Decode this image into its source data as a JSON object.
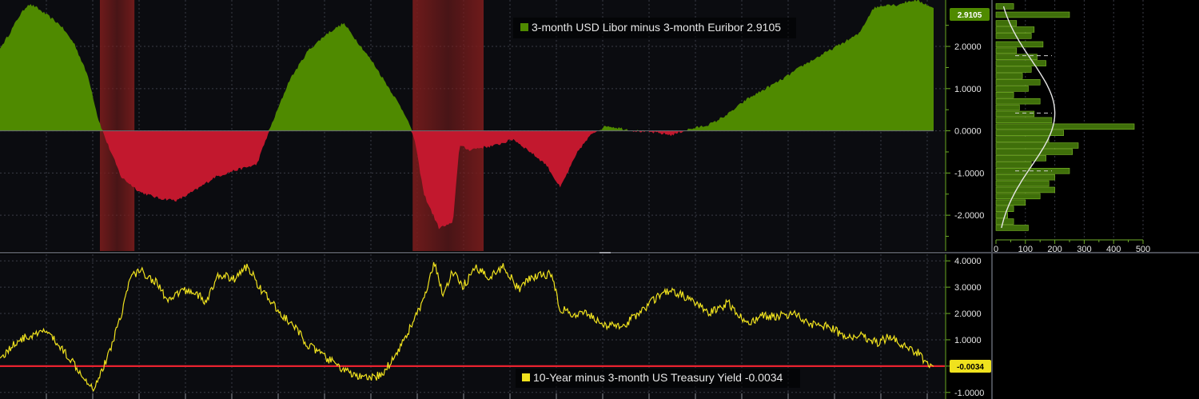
{
  "colors": {
    "background": "#000000",
    "panel": "#0b0c10",
    "grid": "#3a3d46",
    "positive_fill": "#4f8a00",
    "negative_fill": "#c2182e",
    "recession_band": "#7a1c1c",
    "yield_line": "#f0e21e",
    "zero_line": "#e8222e",
    "axis_text": "#e6e6e6",
    "axis_line": "#6fae2a"
  },
  "chart_data": [
    {
      "type": "area",
      "legend": "3-month USD Libor minus 3-month Euribor 2.9105",
      "legend_swatch_color": "#4f8a00",
      "last_value_label": "2.9105",
      "last_value": 2.9105,
      "ylim": [
        -2.85,
        3.1
      ],
      "y_ticks": [
        2.0,
        1.0,
        0.0,
        -1.0,
        -2.0
      ],
      "y_tick_labels": [
        "2.0000",
        "1.0000",
        "0.0000",
        "-1.0000",
        "-2.0000"
      ],
      "grid": true,
      "legend_placement": "top-center",
      "x_index_range": [
        0,
        100
      ],
      "shaded_periods": [
        {
          "start": 10.7,
          "end": 14.4
        },
        {
          "start": 44.2,
          "end": 51.8
        }
      ],
      "series": [
        {
          "values_x": [
            0,
            1,
            2,
            3,
            3.7,
            5,
            6.5,
            8,
            9.5,
            10.5,
            11.4,
            13,
            15,
            17,
            19,
            21,
            23,
            25,
            27.5,
            29,
            31,
            33,
            35,
            36.8,
            38,
            40,
            42,
            43.5,
            44.4,
            45.4,
            47,
            48.5,
            49.2,
            50.2,
            51.5,
            53,
            55,
            56.5,
            58.5,
            60,
            62,
            63.5,
            65,
            66.5,
            68,
            70,
            72,
            73.5,
            74.5,
            75.5,
            76.5,
            77.2,
            78,
            80,
            82,
            84,
            86,
            88,
            90,
            92,
            93.5,
            95,
            96,
            97,
            98,
            99,
            100
          ],
          "values": [
            1.95,
            2.3,
            2.7,
            3.0,
            2.95,
            2.75,
            2.5,
            2.05,
            1.25,
            0.3,
            -0.25,
            -1.1,
            -1.45,
            -1.6,
            -1.65,
            -1.4,
            -1.1,
            -0.95,
            -0.8,
            0.1,
            1.2,
            1.9,
            2.3,
            2.55,
            2.2,
            1.6,
            0.9,
            0.35,
            -0.2,
            -1.5,
            -2.3,
            -2.2,
            -0.35,
            -0.45,
            -0.4,
            -0.35,
            -0.2,
            -0.45,
            -0.8,
            -1.35,
            -0.45,
            -0.05,
            0.12,
            0.06,
            0.0,
            -0.04,
            -0.1,
            0.02,
            0.07,
            0.12,
            0.2,
            0.3,
            0.4,
            0.75,
            1.0,
            1.25,
            1.55,
            1.8,
            2.05,
            2.3,
            2.9,
            3.0,
            2.98,
            3.05,
            3.1,
            3.02,
            2.9105
          ]
        }
      ]
    },
    {
      "type": "line",
      "legend": "10-Year minus 3-month US Treasury Yield -0.0034",
      "legend_swatch_color": "#f0e21e",
      "last_value_label": "-0.0034",
      "last_value": -0.0034,
      "ylim": [
        -1.25,
        4.25
      ],
      "y_ticks": [
        4.0,
        3.0,
        2.0,
        1.0,
        0.0,
        -1.0
      ],
      "y_tick_labels": [
        "4.0000",
        "3.0000",
        "2.0000",
        "1.0000",
        "",
        "-1.0000"
      ],
      "reference_line": 0,
      "grid": true,
      "legend_placement": "bottom-center",
      "x_index_range": [
        0,
        100
      ],
      "series": [
        {
          "values_x": [
            0,
            2,
            4,
            5,
            6,
            7.5,
            9,
            10,
            11.5,
            13,
            14,
            15,
            17,
            18,
            19.5,
            21,
            22,
            23.5,
            25,
            26.5,
            28,
            30,
            31.5,
            33,
            35,
            37.5,
            39.5,
            41,
            42.5,
            44,
            45.5,
            46.5,
            47.5,
            48.5,
            49.5,
            51,
            52.5,
            54,
            55.5,
            57,
            59,
            60,
            61.5,
            63,
            65,
            67,
            69,
            71,
            72.5,
            74,
            76,
            78,
            80,
            81.5,
            83,
            85,
            87,
            89,
            90.5,
            92,
            94,
            95.5,
            97,
            98.5,
            99.2,
            100
          ],
          "values": [
            0.3,
            1.0,
            1.2,
            1.35,
            0.9,
            0.3,
            -0.4,
            -0.85,
            0.3,
            2.0,
            3.4,
            3.65,
            3.1,
            2.4,
            2.9,
            2.8,
            2.4,
            3.5,
            3.3,
            3.8,
            2.9,
            2.0,
            1.5,
            0.8,
            0.3,
            -0.3,
            -0.5,
            -0.3,
            0.5,
            1.5,
            2.6,
            3.9,
            2.7,
            3.6,
            3.0,
            3.7,
            3.4,
            3.8,
            2.9,
            3.4,
            3.5,
            2.2,
            1.9,
            2.0,
            1.5,
            1.6,
            2.2,
            2.8,
            2.8,
            2.5,
            2.0,
            2.4,
            1.6,
            1.9,
            1.9,
            2.0,
            1.6,
            1.5,
            1.05,
            1.2,
            0.9,
            1.15,
            0.7,
            0.5,
            0.1,
            -0.0034
          ]
        }
      ]
    },
    {
      "type": "bar",
      "orientation": "horizontal",
      "x_ticks": [
        0,
        100,
        200,
        300,
        400,
        500
      ],
      "x_tick_labels": [
        "0",
        "100",
        "200",
        "300",
        "400",
        "500"
      ],
      "xlim": [
        0,
        500
      ],
      "bar_y_values": [
        2.95,
        2.75,
        2.55,
        2.4,
        2.25,
        2.05,
        1.9,
        1.75,
        1.6,
        1.45,
        1.3,
        1.15,
        1.0,
        0.85,
        0.7,
        0.55,
        0.4,
        0.25,
        0.1,
        -0.05,
        -0.2,
        -0.35,
        -0.5,
        -0.65,
        -0.8,
        -0.95,
        -1.1,
        -1.25,
        -1.4,
        -1.55,
        -1.7,
        -1.85,
        -2.0,
        -2.15,
        -2.3
      ],
      "values": [
        60,
        250,
        70,
        130,
        120,
        160,
        70,
        140,
        170,
        120,
        90,
        150,
        110,
        60,
        150,
        80,
        130,
        190,
        470,
        230,
        180,
        280,
        260,
        170,
        120,
        250,
        200,
        180,
        200,
        150,
        100,
        60,
        40,
        60,
        110
      ],
      "curve_color": "#e6e6e6",
      "dashed_levels": [
        1.78,
        0.42,
        -0.95
      ]
    }
  ]
}
